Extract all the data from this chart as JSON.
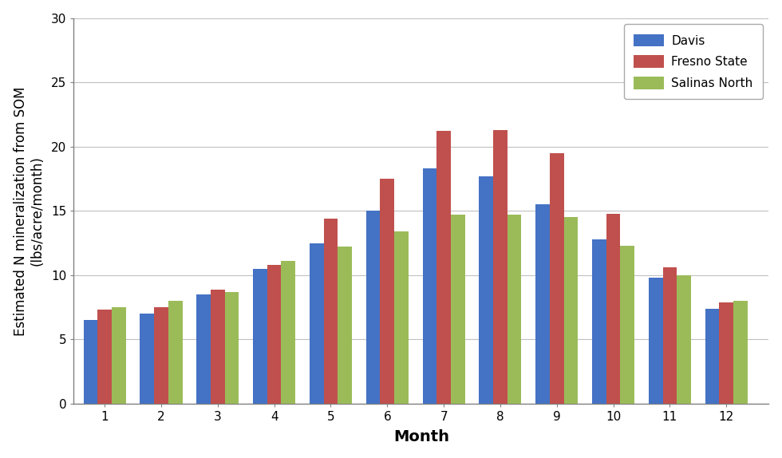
{
  "months": [
    1,
    2,
    3,
    4,
    5,
    6,
    7,
    8,
    9,
    10,
    11,
    12
  ],
  "davis": [
    6.5,
    7.0,
    8.5,
    10.5,
    12.5,
    15.0,
    18.3,
    17.7,
    15.5,
    12.8,
    9.8,
    7.4
  ],
  "fresno_state": [
    7.3,
    7.5,
    8.9,
    10.8,
    14.4,
    17.5,
    21.2,
    21.3,
    19.5,
    14.8,
    10.6,
    7.9
  ],
  "salinas_north": [
    7.5,
    8.0,
    8.7,
    11.1,
    12.2,
    13.4,
    14.7,
    14.7,
    14.5,
    12.3,
    10.0,
    8.0
  ],
  "colors": {
    "davis": "#4472C4",
    "fresno_state": "#C0504D",
    "salinas_north": "#9BBB59"
  },
  "legend_labels": [
    "Davis",
    "Fresno State",
    "Salinas North"
  ],
  "ylabel": "Estimated N mineralization from SOM\n(lbs/acre/month)",
  "xlabel": "Month",
  "ylim": [
    0,
    30
  ],
  "yticks": [
    0,
    5,
    10,
    15,
    20,
    25,
    30
  ],
  "label_fontsize": 12,
  "tick_fontsize": 11,
  "legend_fontsize": 11,
  "bar_width": 0.25,
  "background_color": "#FFFFFF",
  "plot_bg_color": "#FFFFFF",
  "grid_color": "#C0C0C0",
  "axis_color": "#808080"
}
